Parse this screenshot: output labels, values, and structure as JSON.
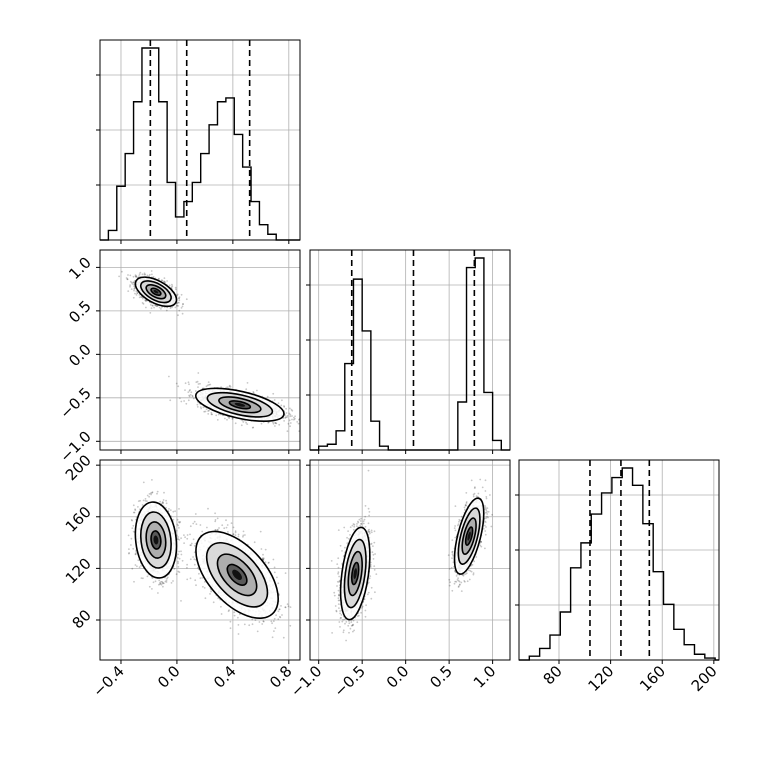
{
  "chart_data": {
    "type": "corner",
    "parameters": [
      {
        "range": [
          -0.55,
          0.88
        ],
        "ticks": [
          -0.4,
          0.0,
          0.4,
          0.8
        ],
        "tick_labels": [
          "−0.4",
          "0.0",
          "0.4",
          "0.8"
        ]
      },
      {
        "range": [
          -1.1,
          1.2
        ],
        "ticks": [
          -1.0,
          -0.5,
          0.0,
          0.5,
          1.0
        ],
        "tick_labels": [
          "−1.0",
          "−0.5",
          "0.0",
          "0.5",
          "1.0"
        ]
      },
      {
        "range": [
          49,
          204
        ],
        "ticks": [
          80,
          120,
          160,
          200
        ],
        "tick_labels": [
          "80",
          "120",
          "160",
          "200"
        ]
      }
    ],
    "histograms": [
      {
        "param": 0,
        "bins": [
          -0.55,
          -0.49,
          -0.43,
          -0.37,
          -0.31,
          -0.25,
          -0.19,
          -0.13,
          -0.07,
          -0.01,
          0.05,
          0.11,
          0.17,
          0.23,
          0.29,
          0.35,
          0.41,
          0.47,
          0.53,
          0.59,
          0.65,
          0.71,
          0.77,
          0.83,
          0.88
        ],
        "counts": [
          0.0,
          0.05,
          0.28,
          0.45,
          0.72,
          1.0,
          1.0,
          0.72,
          0.3,
          0.12,
          0.2,
          0.3,
          0.45,
          0.6,
          0.72,
          0.74,
          0.55,
          0.38,
          0.2,
          0.08,
          0.03,
          0.0,
          0.0,
          0.0
        ],
        "quantiles": [
          -0.19,
          0.07,
          0.52
        ]
      },
      {
        "param": 1,
        "bins": [
          -1.1,
          -1.0,
          -0.9,
          -0.8,
          -0.7,
          -0.6,
          -0.5,
          -0.4,
          -0.3,
          -0.2,
          -0.1,
          0.0,
          0.1,
          0.2,
          0.3,
          0.4,
          0.5,
          0.6,
          0.7,
          0.8,
          0.9,
          1.0,
          1.1,
          1.2
        ],
        "counts": [
          0.0,
          0.02,
          0.03,
          0.1,
          0.45,
          0.89,
          0.62,
          0.15,
          0.02,
          0.0,
          0.0,
          0.0,
          0.0,
          0.0,
          0.0,
          0.0,
          0.0,
          0.25,
          0.95,
          1.0,
          0.3,
          0.05,
          0.0
        ],
        "quantiles": [
          -0.62,
          0.09,
          0.79
        ]
      },
      {
        "param": 2,
        "bins": [
          49,
          57,
          65,
          73,
          81,
          89,
          97,
          105,
          113,
          121,
          129,
          137,
          145,
          153,
          161,
          169,
          177,
          185,
          193,
          201,
          204
        ],
        "counts": [
          0.0,
          0.02,
          0.06,
          0.13,
          0.25,
          0.48,
          0.61,
          0.76,
          0.87,
          0.95,
          1.0,
          0.91,
          0.71,
          0.46,
          0.29,
          0.16,
          0.08,
          0.03,
          0.01,
          0.0
        ],
        "quantiles": [
          104,
          128,
          150
        ]
      }
    ],
    "pairs": [
      {
        "x_param": 0,
        "y_param": 1,
        "modes": [
          {
            "cx": -0.15,
            "cy": 0.72,
            "sx": 0.07,
            "sy": 0.08,
            "rho": -0.55,
            "n": 1300
          },
          {
            "cx": 0.45,
            "cy": -0.58,
            "sx": 0.15,
            "sy": 0.09,
            "rho": -0.55,
            "n": 1500
          }
        ]
      },
      {
        "x_param": 0,
        "y_param": 2,
        "modes": [
          {
            "cx": -0.15,
            "cy": 142,
            "sx": 0.07,
            "sy": 14,
            "rho": -0.15,
            "n": 1300
          },
          {
            "cx": 0.43,
            "cy": 115,
            "sx": 0.14,
            "sy": 16,
            "rho": -0.55,
            "n": 1500
          }
        ]
      },
      {
        "x_param": 1,
        "y_param": 2,
        "modes": [
          {
            "cx": -0.58,
            "cy": 116,
            "sx": 0.08,
            "sy": 17,
            "rho": 0.4,
            "n": 1500
          },
          {
            "cx": 0.73,
            "cy": 145,
            "sx": 0.08,
            "sy": 14,
            "rho": 0.6,
            "n": 1300
          }
        ]
      }
    ],
    "grid": true
  }
}
